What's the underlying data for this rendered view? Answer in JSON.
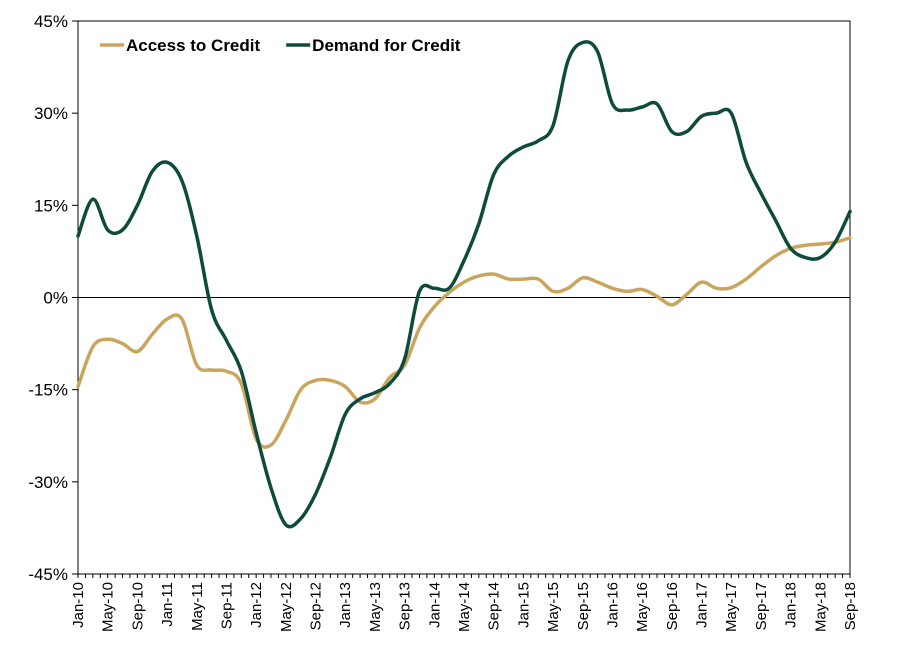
{
  "chart_data": {
    "type": "line",
    "title": "",
    "xlabel": "",
    "ylabel": "",
    "ylim": [
      -45,
      45
    ],
    "y_ticks": [
      -45,
      -30,
      -15,
      0,
      15,
      30,
      45
    ],
    "y_tick_labels": [
      "-45%",
      "-30%",
      "-15%",
      "0%",
      "15%",
      "30%",
      "45%"
    ],
    "x_tick_labels": [
      "Jan-10",
      "May-10",
      "Sep-10",
      "Jan-11",
      "May-11",
      "Sep-11",
      "Jan-12",
      "May-12",
      "Sep-12",
      "Jan-13",
      "May-13",
      "Sep-13",
      "Jan-14",
      "May-14",
      "Sep-14",
      "Jan-15",
      "May-15",
      "Sep-15",
      "Jan-16",
      "May-16",
      "Sep-16",
      "Jan-17",
      "May-17",
      "Sep-17",
      "Jan-18",
      "May-18",
      "Sep-18"
    ],
    "grid": false,
    "legend_position": "top-left",
    "series": [
      {
        "name": "Access to Credit",
        "color": "#C9A55D",
        "x": [
          "Jan-10",
          "Mar-10",
          "May-10",
          "Jul-10",
          "Sep-10",
          "Nov-10",
          "Jan-11",
          "Mar-11",
          "May-11",
          "Jul-11",
          "Sep-11",
          "Nov-11",
          "Jan-12",
          "Mar-12",
          "May-12",
          "Jul-12",
          "Sep-12",
          "Nov-12",
          "Jan-13",
          "Mar-13",
          "May-13",
          "Jul-13",
          "Sep-13",
          "Nov-13",
          "Jan-14",
          "Mar-14",
          "May-14",
          "Jul-14",
          "Sep-14",
          "Nov-14",
          "Jan-15",
          "Mar-15",
          "May-15",
          "Jul-15",
          "Sep-15",
          "Nov-15",
          "Jan-16",
          "Mar-16",
          "May-16",
          "Jul-16",
          "Sep-16",
          "Nov-16",
          "Jan-17",
          "Mar-17",
          "May-17",
          "Jul-17",
          "Sep-17",
          "Nov-17",
          "Jan-18",
          "Mar-18",
          "May-18",
          "Jul-18",
          "Sep-18"
        ],
        "values": [
          -14.5,
          -8,
          -6.8,
          -7.5,
          -8.8,
          -6,
          -3.5,
          -3.5,
          -11,
          -11.8,
          -12,
          -14,
          -23,
          -24,
          -20,
          -15,
          -13.5,
          -13.5,
          -14.5,
          -17,
          -16.5,
          -13,
          -11,
          -5,
          -1.5,
          0.8,
          2.5,
          3.5,
          3.8,
          3,
          3,
          3,
          1,
          1.5,
          3.2,
          2.5,
          1.5,
          1,
          1.3,
          0.2,
          -1.2,
          0.5,
          2.5,
          1.5,
          1.6,
          3,
          5,
          6.8,
          8,
          8.5,
          8.7,
          9,
          9.7
        ]
      },
      {
        "name": "Demand for Credit",
        "color": "#0E4B3C",
        "x": [
          "Jan-10",
          "Mar-10",
          "May-10",
          "Jul-10",
          "Sep-10",
          "Nov-10",
          "Jan-11",
          "Mar-11",
          "May-11",
          "Jul-11",
          "Sep-11",
          "Nov-11",
          "Jan-12",
          "Mar-12",
          "May-12",
          "Jul-12",
          "Sep-12",
          "Nov-12",
          "Jan-13",
          "Mar-13",
          "May-13",
          "Jul-13",
          "Sep-13",
          "Nov-13",
          "Jan-14",
          "Mar-14",
          "May-14",
          "Jul-14",
          "Sep-14",
          "Nov-14",
          "Jan-15",
          "Mar-15",
          "May-15",
          "Jul-15",
          "Sep-15",
          "Nov-15",
          "Jan-16",
          "Mar-16",
          "May-16",
          "Jul-16",
          "Sep-16",
          "Nov-16",
          "Jan-17",
          "Mar-17",
          "May-17",
          "Jul-17",
          "Sep-17",
          "Nov-17",
          "Jan-18",
          "Mar-18",
          "May-18",
          "Jul-18",
          "Sep-18"
        ],
        "values": [
          10,
          16,
          11,
          11,
          15,
          20.5,
          22,
          19,
          10,
          -2,
          -7,
          -12,
          -22,
          -31,
          -37,
          -36,
          -32,
          -26,
          -19,
          -16.5,
          -15.5,
          -14,
          -10,
          1,
          1.5,
          1.5,
          6,
          12,
          20,
          23,
          24.5,
          25.5,
          28,
          38.5,
          41.5,
          40,
          31.5,
          30.5,
          31,
          31.5,
          27,
          27,
          29.5,
          30,
          30,
          22,
          17,
          12.5,
          8,
          6.5,
          6.5,
          9,
          14
        ]
      }
    ]
  }
}
